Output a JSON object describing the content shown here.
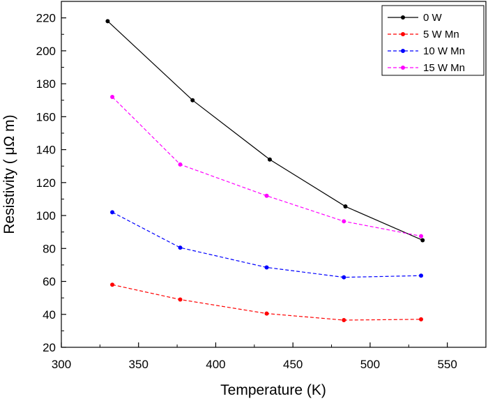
{
  "chart_data": {
    "type": "line",
    "title": "",
    "xlabel": "Temperature (K)",
    "ylabel": "Resistivity ( μΩ m)",
    "xlim": [
      300,
      575
    ],
    "ylim": [
      20,
      230
    ],
    "xticks": [
      300,
      350,
      400,
      450,
      500,
      550
    ],
    "yticks": [
      20,
      40,
      60,
      80,
      100,
      120,
      140,
      160,
      180,
      200,
      220
    ],
    "grid": false,
    "legend": "top-right",
    "series": [
      {
        "name": "0 W",
        "color": "#000000",
        "dashed": false,
        "x": [
          330,
          385,
          435,
          484,
          534
        ],
        "y": [
          218,
          170,
          134,
          105.5,
          85
        ]
      },
      {
        "name": "5 W Mn",
        "color": "#ff0000",
        "dashed": true,
        "x": [
          333,
          377,
          433,
          483,
          533
        ],
        "y": [
          58,
          49,
          40.5,
          36.5,
          37
        ]
      },
      {
        "name": "10 W Mn",
        "color": "#0000ff",
        "dashed": true,
        "x": [
          333,
          377,
          433,
          483,
          533
        ],
        "y": [
          102,
          80.5,
          68.5,
          62.5,
          63.5
        ]
      },
      {
        "name": "15 W Mn",
        "color": "#ff00ff",
        "dashed": true,
        "x": [
          333,
          377,
          433,
          483,
          533
        ],
        "y": [
          172,
          131,
          112,
          96.5,
          87.5
        ]
      }
    ]
  }
}
